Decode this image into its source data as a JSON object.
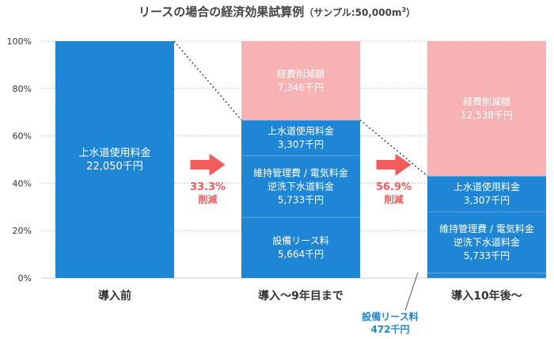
{
  "title": "リースの場合の経済効果試算例",
  "subtitle_prefix": "（サンプル:50,000m",
  "subtitle_sup": "3",
  "subtitle_suffix": "）",
  "colors": {
    "blue": "#1f86d6",
    "pink": "#f7b3b3",
    "reduction_text": "#f25c5c",
    "arrow": "#f45b5b",
    "axis_text": "#333333",
    "grid": "#cccccc",
    "callout_text": "#1f86d6"
  },
  "chart_data": {
    "type": "bar",
    "stacked": true,
    "y_unit": "%",
    "ylim": [
      0,
      100
    ],
    "y_ticks": [
      "0%",
      "20%",
      "40%",
      "60%",
      "80%",
      "100%"
    ],
    "grid": true,
    "categories": [
      "導入前",
      "導入〜9年目まで",
      "導入10年後〜"
    ],
    "bars": [
      {
        "category": "導入前",
        "segments": [
          {
            "label": "上水道使用料金",
            "value_text": "22,050千円",
            "percent": 100,
            "color": "blue"
          }
        ]
      },
      {
        "category": "導入〜9年目まで",
        "segments": [
          {
            "label": "設備リース料",
            "value_text": "5,664千円",
            "percent": 25.7,
            "color": "blue"
          },
          {
            "label": "維持管理費 / 電気料金\n逆洗下水道料金",
            "value_text": "5,733千円",
            "percent": 26,
            "color": "blue"
          },
          {
            "label": "上水道使用料金",
            "value_text": "3,307千円",
            "percent": 15,
            "color": "blue"
          },
          {
            "label": "経費削減額",
            "value_text": "7,346千円",
            "percent": 33.3,
            "color": "pink"
          }
        ]
      },
      {
        "category": "導入10年後〜",
        "segments": [
          {
            "label": "設備リース料",
            "value_text": "472千円",
            "percent": 2.1,
            "color": "blue",
            "callout": true
          },
          {
            "label": "維持管理費 / 電気料金\n逆洗下水道料金",
            "value_text": "5,733千円",
            "percent": 26,
            "color": "blue"
          },
          {
            "label": "上水道使用料金",
            "value_text": "3,307千円",
            "percent": 15,
            "color": "blue"
          },
          {
            "label": "経費削減額",
            "value_text": "12,538千円",
            "percent": 56.9,
            "color": "pink"
          }
        ]
      }
    ],
    "reductions": [
      {
        "percent_text": "33.3%",
        "label": "削減"
      },
      {
        "percent_text": "56.9%",
        "label": "削減"
      }
    ],
    "callout": {
      "label": "設備リース料",
      "value_text": "472千円"
    }
  }
}
